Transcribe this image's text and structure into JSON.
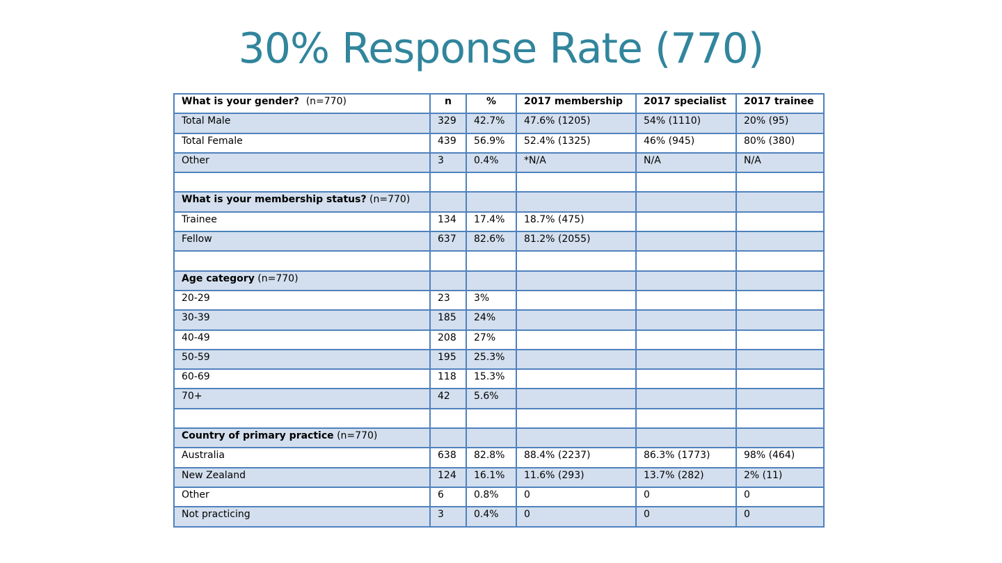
{
  "title": "30% Response Rate (770)",
  "table": {
    "header": {
      "question": "What is your gender?",
      "question_n": "(n=770)",
      "col_n": "n",
      "col_pct": "%",
      "col_membership": "2017 membership",
      "col_specialist": "2017 specialist",
      "col_trainee": "2017 trainee"
    },
    "gender": [
      {
        "label": "Total Male",
        "n": "329",
        "pct": "42.7%",
        "membership": "47.6% (1205)",
        "specialist": "54% (1110)",
        "trainee": "20% (95)"
      },
      {
        "label": "Total Female",
        "n": "439",
        "pct": "56.9%",
        "membership": "52.4% (1325)",
        "specialist": "46% (945)",
        "trainee": "80% (380)"
      },
      {
        "label": "Other",
        "n": "3",
        "pct": "0.4%",
        "membership": "*N/A",
        "specialist": "N/A",
        "trainee": "N/A"
      }
    ],
    "membership_section": {
      "heading": "What is your membership status?",
      "n_note": "(n=770)"
    },
    "membership": [
      {
        "label": "Trainee",
        "n": "134",
        "pct": "17.4%",
        "membership": "18.7% (475)",
        "specialist": "",
        "trainee": ""
      },
      {
        "label": "Fellow",
        "n": "637",
        "pct": "82.6%",
        "membership": "81.2% (2055)",
        "specialist": "",
        "trainee": ""
      }
    ],
    "age_section": {
      "heading": "Age category",
      "n_note": "(n=770)"
    },
    "age": [
      {
        "label": "20-29",
        "n": "23",
        "pct": "3%"
      },
      {
        "label": "30-39",
        "n": "185",
        "pct": "24%"
      },
      {
        "label": "40-49",
        "n": "208",
        "pct": "27%"
      },
      {
        "label": "50-59",
        "n": "195",
        "pct": "25.3%"
      },
      {
        "label": "60-69",
        "n": "118",
        "pct": "15.3%"
      },
      {
        "label": "70+",
        "n": "42",
        "pct": "5.6%"
      }
    ],
    "country_section": {
      "heading": "Country of primary practice",
      "n_note": "(n=770)"
    },
    "country": [
      {
        "label": "Australia",
        "n": "638",
        "pct": "82.8%",
        "membership": "88.4% (2237)",
        "specialist": "86.3% (1773)",
        "trainee": "98% (464)"
      },
      {
        "label": "New Zealand",
        "n": "124",
        "pct": "16.1%",
        "membership": "11.6% (293)",
        "specialist": "13.7% (282)",
        "trainee": "2% (11)"
      },
      {
        "label": "Other",
        "n": "6",
        "pct": "0.8%",
        "membership": "0",
        "specialist": "0",
        "trainee": "0"
      },
      {
        "label": "Not practicing",
        "n": "3",
        "pct": "0.4%",
        "membership": "0",
        "specialist": "0",
        "trainee": "0"
      }
    ]
  },
  "colors": {
    "title": "#31859C",
    "border": "#4F81BD",
    "band": "#D3DFEE"
  }
}
